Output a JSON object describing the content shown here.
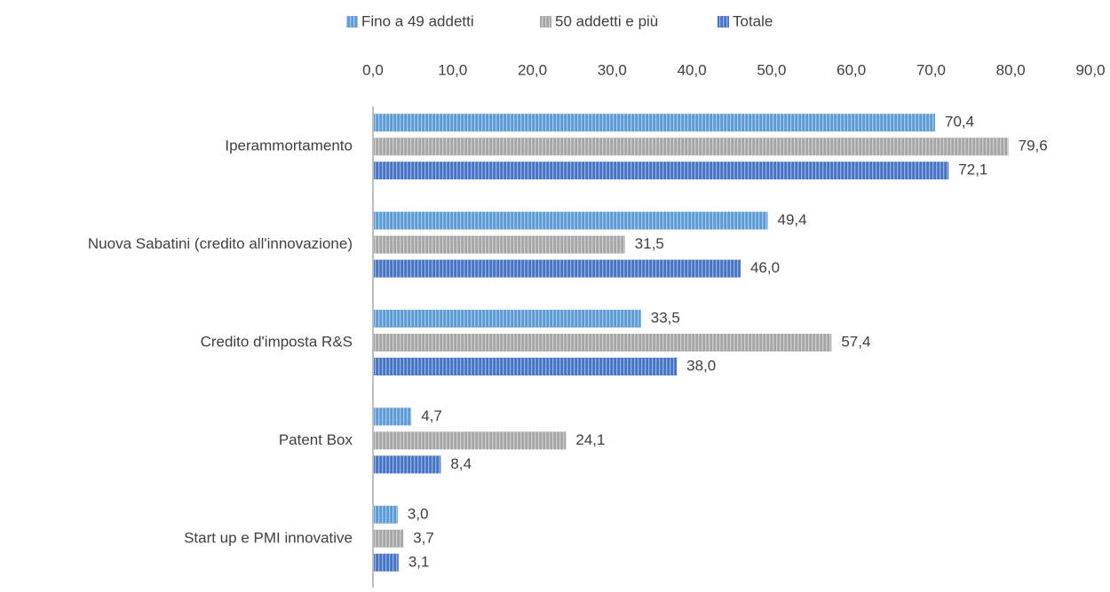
{
  "chart_data": {
    "type": "bar",
    "orientation": "horizontal",
    "categories": [
      "Iperammortamento",
      "Nuova Sabatini (credito all'innovazione)",
      "Credito d'imposta R&S",
      "Patent Box",
      "Start up e PMI innovative"
    ],
    "series": [
      {
        "name": "Fino a 49 addetti",
        "color": "#5b9bd5",
        "values": [
          70.4,
          49.4,
          33.5,
          4.7,
          3.0
        ],
        "value_labels": [
          "70,4",
          "49,4",
          "33,5",
          "4,7",
          "3,0"
        ]
      },
      {
        "name": "50 addetti e più",
        "color": "#a5a5a5",
        "values": [
          79.6,
          31.5,
          57.4,
          24.1,
          3.7
        ],
        "value_labels": [
          "79,6",
          "31,5",
          "57,4",
          "24,1",
          "3,7"
        ]
      },
      {
        "name": "Totale",
        "color": "#4472c4",
        "values": [
          72.1,
          46.0,
          38.0,
          8.4,
          3.1
        ],
        "value_labels": [
          "72,1",
          "46,0",
          "38,0",
          "8,4",
          "3,1"
        ]
      }
    ],
    "xlim": [
      0,
      90
    ],
    "xticks": [
      {
        "value": 0,
        "label": "0,0"
      },
      {
        "value": 10,
        "label": "10,0"
      },
      {
        "value": 20,
        "label": "20,0"
      },
      {
        "value": 30,
        "label": "30,0"
      },
      {
        "value": 40,
        "label": "40,0"
      },
      {
        "value": 50,
        "label": "50,0"
      },
      {
        "value": 60,
        "label": "60,0"
      },
      {
        "value": 70,
        "label": "70,0"
      },
      {
        "value": 80,
        "label": "80,0"
      },
      {
        "value": 90,
        "label": "90,0"
      }
    ],
    "legend": "top",
    "grid": false
  }
}
